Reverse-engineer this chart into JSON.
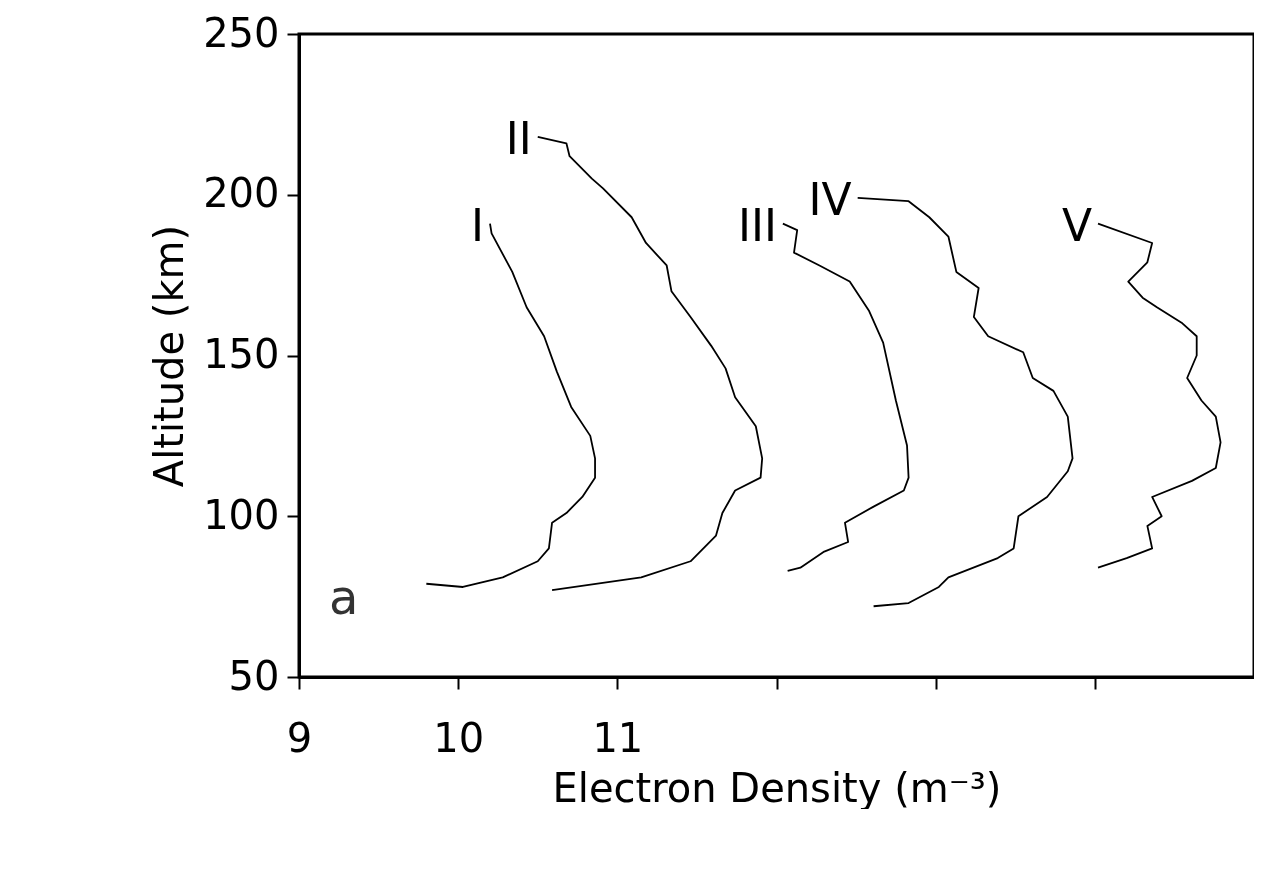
{
  "chart_data": {
    "type": "line",
    "xlabel": "Electron Density (m⁻³)",
    "ylabel": "Altitude (km)",
    "xlim": [
      9,
      15
    ],
    "ylim": [
      50,
      250
    ],
    "xticks": [
      9,
      10,
      11,
      {
        "value": 12,
        "label": null
      },
      {
        "value": 13,
        "label": null
      },
      {
        "value": 14,
        "label": null
      }
    ],
    "yticks": [
      50,
      100,
      150,
      200,
      250
    ],
    "grid": false,
    "legend": false,
    "marker": "none",
    "line_style": "solid",
    "annotations": [
      "a"
    ],
    "series": [
      {
        "name": "I",
        "color": "#000000",
        "x": [
          10.2,
          10.21,
          10.34,
          10.43,
          10.54,
          10.62,
          10.71,
          10.83,
          10.86,
          10.86,
          10.78,
          10.68,
          10.59,
          10.57,
          10.5,
          10.28,
          10.03,
          9.8
        ],
        "values": [
          191,
          188,
          176,
          165,
          156,
          145,
          134,
          125,
          118,
          112,
          106,
          101,
          98,
          90,
          86,
          81,
          78,
          79
        ]
      },
      {
        "name": "II",
        "color": "#000000",
        "x": [
          10.5,
          10.68,
          10.7,
          10.84,
          10.91,
          11.09,
          11.18,
          11.31,
          11.34,
          11.46,
          11.59,
          11.68,
          11.74,
          11.87,
          11.91,
          11.9,
          11.74,
          11.66,
          11.62,
          11.46,
          11.15,
          10.59
        ],
        "values": [
          218,
          216,
          212,
          205,
          202,
          193,
          185,
          178,
          170,
          162,
          153,
          146,
          137,
          128,
          118,
          112,
          108,
          101,
          94,
          86,
          81,
          77
        ]
      },
      {
        "name": "III",
        "color": "#000000",
        "x": [
          12.04,
          12.13,
          12.11,
          12.27,
          12.46,
          12.58,
          12.67,
          12.75,
          12.82,
          12.83,
          12.8,
          12.61,
          12.43,
          12.45,
          12.3,
          12.15,
          12.07
        ],
        "values": [
          191,
          189,
          182,
          178,
          173,
          164,
          154,
          136,
          122,
          112,
          108,
          103,
          98,
          92,
          89,
          84,
          83
        ]
      },
      {
        "name": "IV",
        "color": "#000000",
        "x": [
          12.51,
          12.83,
          12.96,
          13.08,
          13.13,
          13.27,
          13.24,
          13.33,
          13.55,
          13.61,
          13.74,
          13.83,
          13.86,
          13.83,
          13.7,
          13.52,
          13.49,
          13.39,
          13.08,
          13.02,
          12.83,
          12.61
        ],
        "values": [
          199,
          198,
          193,
          187,
          176,
          171,
          162,
          156,
          151,
          143,
          139,
          131,
          118,
          114,
          106,
          100,
          90,
          87,
          81,
          78,
          73,
          72
        ]
      },
      {
        "name": "V",
        "color": "#000000",
        "x": [
          14.02,
          14.36,
          14.33,
          14.21,
          14.3,
          14.39,
          14.55,
          14.64,
          14.64,
          14.58,
          14.67,
          14.76,
          14.79,
          14.76,
          14.61,
          14.36,
          14.42,
          14.33,
          14.36,
          14.2,
          14.02
        ],
        "values": [
          191,
          185,
          179,
          173,
          168,
          165,
          160,
          156,
          150,
          143,
          136,
          131,
          123,
          115,
          111,
          106,
          100,
          97,
          90,
          87,
          84
        ]
      }
    ]
  }
}
